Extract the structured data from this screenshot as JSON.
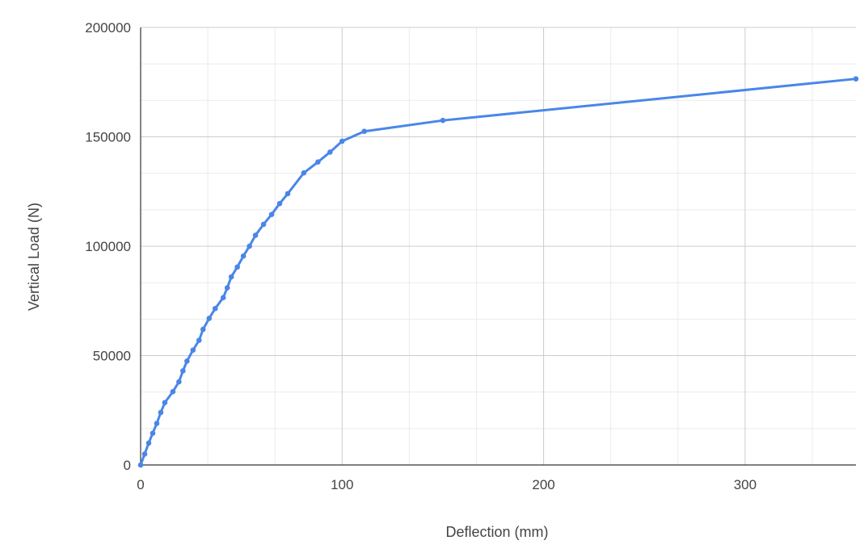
{
  "chart_data": {
    "type": "line",
    "title": "",
    "xlabel": "Deflection (mm)",
    "ylabel": "Vertical Load (N)",
    "xlim": [
      0,
      355
    ],
    "ylim": [
      0,
      200000
    ],
    "x_ticks": [
      0,
      100,
      200,
      300
    ],
    "x_tick_labels": [
      "0",
      "100",
      "200",
      "300"
    ],
    "y_ticks": [
      0,
      50000,
      100000,
      150000,
      200000
    ],
    "y_tick_labels": [
      "0",
      "50000",
      "100000",
      "150000",
      "200000"
    ],
    "grid": true,
    "legend": "none",
    "series": [
      {
        "color": "#4a86e8",
        "markers": true,
        "points": [
          [
            0,
            0
          ],
          [
            2,
            5000
          ],
          [
            4,
            10000
          ],
          [
            6,
            14500
          ],
          [
            8,
            19000
          ],
          [
            10,
            24000
          ],
          [
            12,
            28500
          ],
          [
            16,
            33500
          ],
          [
            19,
            38000
          ],
          [
            21,
            43000
          ],
          [
            23,
            47500
          ],
          [
            26,
            52500
          ],
          [
            29,
            57000
          ],
          [
            31,
            62000
          ],
          [
            34,
            67000
          ],
          [
            37,
            71500
          ],
          [
            41,
            76500
          ],
          [
            43,
            81000
          ],
          [
            45,
            86000
          ],
          [
            48,
            90500
          ],
          [
            51,
            95500
          ],
          [
            54,
            100000
          ],
          [
            57,
            105000
          ],
          [
            61,
            110000
          ],
          [
            65,
            114500
          ],
          [
            69,
            119500
          ],
          [
            73,
            124000
          ],
          [
            81,
            133500
          ],
          [
            88,
            138500
          ],
          [
            94,
            143000
          ],
          [
            100,
            148000
          ],
          [
            111,
            152500
          ],
          [
            150,
            157500
          ],
          [
            355,
            176500
          ]
        ]
      }
    ]
  }
}
